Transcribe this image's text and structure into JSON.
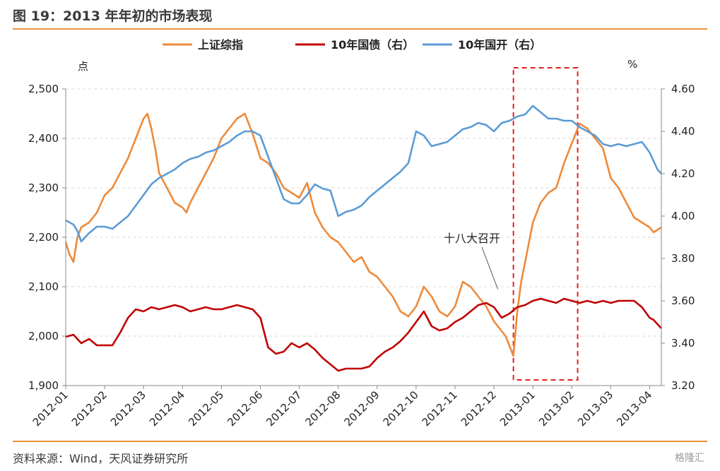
{
  "header": {
    "title": "图 19：2013 年年初的市场表现"
  },
  "footer": {
    "source": "资料来源：Wind，天风证券研究所",
    "watermark": "格隆汇"
  },
  "chart_data": {
    "type": "line",
    "left_unit": "点",
    "right_unit": "%",
    "x_labels": [
      "2012-01",
      "2012-02",
      "2012-03",
      "2012-04",
      "2012-05",
      "2012-06",
      "2012-07",
      "2012-08",
      "2012-09",
      "2012-10",
      "2012-11",
      "2012-12",
      "2013-01",
      "2013-02",
      "2013-03",
      "2013-04"
    ],
    "x_range": [
      0,
      15.3
    ],
    "y_left": {
      "range": [
        1900,
        2500
      ],
      "ticks": [
        1900,
        2000,
        2100,
        2200,
        2300,
        2400,
        2500
      ],
      "tick_labels": [
        "1,900",
        "2,000",
        "2,100",
        "2,200",
        "2,300",
        "2,400",
        "2,500"
      ]
    },
    "y_right": {
      "range": [
        3.2,
        4.6
      ],
      "ticks": [
        3.2,
        3.4,
        3.6,
        3.8,
        4.0,
        4.2,
        4.4,
        4.6
      ],
      "tick_labels": [
        "3.20",
        "3.40",
        "3.60",
        "3.80",
        "4.00",
        "4.20",
        "4.40",
        "4.60"
      ]
    },
    "grid": "horizontal-dashed",
    "legend": "top-center",
    "series": [
      {
        "name": "上证综指",
        "axis": "left",
        "color": "#ED8A3A",
        "x": [
          0,
          0.1,
          0.2,
          0.3,
          0.4,
          0.6,
          0.8,
          1.0,
          1.2,
          1.4,
          1.6,
          1.8,
          2.0,
          2.1,
          2.2,
          2.3,
          2.4,
          2.6,
          2.8,
          3.0,
          3.1,
          3.2,
          3.4,
          3.6,
          3.8,
          4.0,
          4.2,
          4.4,
          4.6,
          4.8,
          5.0,
          5.2,
          5.4,
          5.6,
          5.8,
          6.0,
          6.2,
          6.4,
          6.6,
          6.8,
          7.0,
          7.2,
          7.4,
          7.6,
          7.8,
          8.0,
          8.2,
          8.4,
          8.6,
          8.8,
          9.0,
          9.2,
          9.4,
          9.6,
          9.8,
          10.0,
          10.2,
          10.4,
          10.6,
          10.8,
          11.0,
          11.1,
          11.2,
          11.3,
          11.4,
          11.5,
          11.6,
          11.7,
          11.8,
          11.9,
          12.0,
          12.2,
          12.4,
          12.6,
          12.8,
          13.0,
          13.2,
          13.4,
          13.6,
          13.8,
          14.0,
          14.2,
          14.4,
          14.6,
          14.8,
          15.0,
          15.1,
          15.2,
          15.3
        ],
        "y": [
          2190,
          2165,
          2150,
          2200,
          2220,
          2230,
          2250,
          2285,
          2300,
          2330,
          2360,
          2400,
          2440,
          2450,
          2420,
          2380,
          2330,
          2300,
          2270,
          2260,
          2250,
          2270,
          2300,
          2330,
          2360,
          2400,
          2420,
          2440,
          2450,
          2410,
          2360,
          2350,
          2330,
          2300,
          2290,
          2280,
          2310,
          2250,
          2220,
          2200,
          2190,
          2170,
          2150,
          2160,
          2130,
          2120,
          2100,
          2080,
          2050,
          2040,
          2060,
          2100,
          2080,
          2050,
          2040,
          2060,
          2110,
          2100,
          2080,
          2060,
          2030,
          2020,
          2010,
          2000,
          1980,
          1960,
          2050,
          2110,
          2150,
          2190,
          2230,
          2270,
          2290,
          2300,
          2350,
          2390,
          2430,
          2420,
          2400,
          2380,
          2320,
          2300,
          2270,
          2240,
          2230,
          2220,
          2210,
          2215,
          2220
        ]
      },
      {
        "name": "10年国债（右）",
        "axis": "right",
        "color": "#C00000",
        "x": [
          0,
          0.2,
          0.4,
          0.6,
          0.8,
          1.0,
          1.2,
          1.4,
          1.6,
          1.8,
          2.0,
          2.2,
          2.4,
          2.6,
          2.8,
          3.0,
          3.2,
          3.4,
          3.6,
          3.8,
          4.0,
          4.2,
          4.4,
          4.6,
          4.8,
          5.0,
          5.2,
          5.4,
          5.6,
          5.8,
          6.0,
          6.2,
          6.4,
          6.6,
          6.8,
          7.0,
          7.2,
          7.4,
          7.6,
          7.8,
          8.0,
          8.2,
          8.4,
          8.6,
          8.8,
          9.0,
          9.2,
          9.4,
          9.6,
          9.8,
          10.0,
          10.2,
          10.4,
          10.6,
          10.8,
          11.0,
          11.2,
          11.4,
          11.6,
          11.8,
          12.0,
          12.2,
          12.4,
          12.6,
          12.8,
          13.0,
          13.2,
          13.4,
          13.6,
          13.8,
          14.0,
          14.2,
          14.4,
          14.6,
          14.8,
          15.0,
          15.1,
          15.2,
          15.3
        ],
        "y": [
          3.43,
          3.44,
          3.4,
          3.42,
          3.39,
          3.39,
          3.39,
          3.45,
          3.52,
          3.56,
          3.55,
          3.57,
          3.56,
          3.57,
          3.58,
          3.57,
          3.55,
          3.56,
          3.57,
          3.56,
          3.56,
          3.57,
          3.58,
          3.57,
          3.56,
          3.52,
          3.38,
          3.35,
          3.36,
          3.4,
          3.38,
          3.4,
          3.37,
          3.33,
          3.3,
          3.27,
          3.28,
          3.28,
          3.28,
          3.29,
          3.33,
          3.36,
          3.38,
          3.41,
          3.45,
          3.5,
          3.55,
          3.48,
          3.46,
          3.47,
          3.5,
          3.52,
          3.55,
          3.58,
          3.59,
          3.57,
          3.52,
          3.54,
          3.57,
          3.58,
          3.6,
          3.61,
          3.6,
          3.59,
          3.61,
          3.6,
          3.59,
          3.6,
          3.59,
          3.6,
          3.59,
          3.6,
          3.6,
          3.6,
          3.57,
          3.52,
          3.51,
          3.49,
          3.47
        ]
      },
      {
        "name": "10年国开（右）",
        "axis": "right",
        "color": "#5B9BD5",
        "x": [
          0,
          0.2,
          0.3,
          0.4,
          0.6,
          0.8,
          1.0,
          1.2,
          1.4,
          1.6,
          1.8,
          2.0,
          2.2,
          2.4,
          2.6,
          2.8,
          3.0,
          3.2,
          3.4,
          3.6,
          3.8,
          4.0,
          4.2,
          4.4,
          4.6,
          4.8,
          5.0,
          5.2,
          5.4,
          5.6,
          5.8,
          6.0,
          6.2,
          6.4,
          6.6,
          6.8,
          7.0,
          7.2,
          7.4,
          7.6,
          7.8,
          8.0,
          8.2,
          8.4,
          8.6,
          8.8,
          9.0,
          9.2,
          9.4,
          9.6,
          9.8,
          10.0,
          10.2,
          10.4,
          10.6,
          10.8,
          11.0,
          11.2,
          11.4,
          11.6,
          11.8,
          12.0,
          12.2,
          12.4,
          12.6,
          12.8,
          13.0,
          13.2,
          13.4,
          13.6,
          13.8,
          14.0,
          14.2,
          14.4,
          14.6,
          14.8,
          15.0,
          15.1,
          15.2,
          15.3
        ],
        "y": [
          3.98,
          3.96,
          3.93,
          3.88,
          3.92,
          3.95,
          3.95,
          3.94,
          3.97,
          4.0,
          4.05,
          4.1,
          4.15,
          4.18,
          4.2,
          4.22,
          4.25,
          4.27,
          4.28,
          4.3,
          4.31,
          4.33,
          4.35,
          4.38,
          4.4,
          4.4,
          4.38,
          4.28,
          4.18,
          4.08,
          4.06,
          4.06,
          4.1,
          4.15,
          4.13,
          4.12,
          4.0,
          4.02,
          4.03,
          4.05,
          4.09,
          4.12,
          4.15,
          4.18,
          4.21,
          4.25,
          4.4,
          4.38,
          4.33,
          4.34,
          4.35,
          4.38,
          4.41,
          4.42,
          4.44,
          4.43,
          4.4,
          4.44,
          4.45,
          4.47,
          4.48,
          4.52,
          4.49,
          4.46,
          4.46,
          4.45,
          4.45,
          4.42,
          4.4,
          4.38,
          4.34,
          4.33,
          4.34,
          4.33,
          4.34,
          4.35,
          4.3,
          4.26,
          4.22,
          4.2
        ]
      }
    ],
    "annotations": [
      {
        "text": "十八大召开",
        "x": 11.1,
        "y_left": 2095
      }
    ],
    "highlight_box": {
      "x_start": 11.5,
      "x_end": 13.15,
      "style": "red-dashed"
    }
  }
}
